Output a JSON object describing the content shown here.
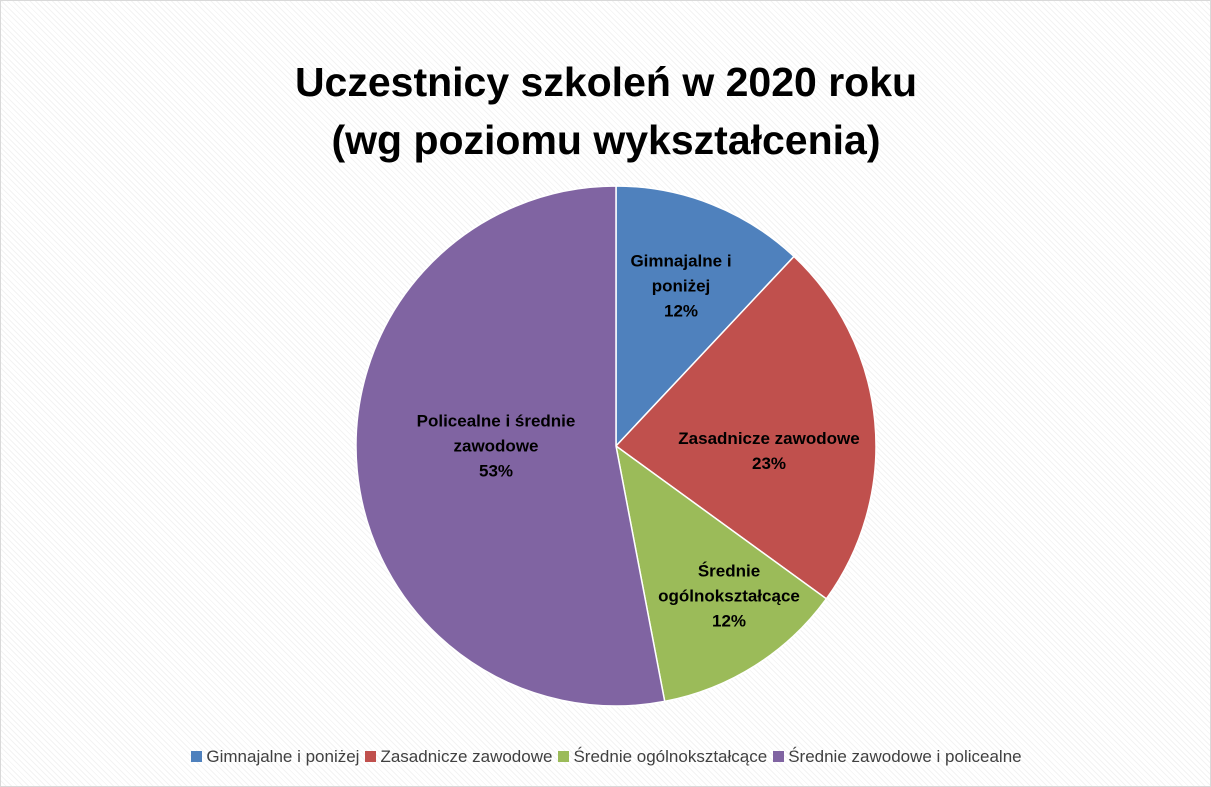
{
  "chart_data": {
    "type": "pie",
    "title": "Uczestnicy szkoleń w 2020 roku (wg poziomu wykształcenia)",
    "categories": [
      "Gimnajalne i poniżej",
      "Zasadnicze zawodowe",
      "Średnie ogólnokształcące",
      "Średnie zawodowe i policealne"
    ],
    "slice_labels": [
      "Gimnajalne i poniżej",
      "Zasadnicze zawodowe",
      "Średnie ogólnokształcące",
      "Policealne i średnie zawodowe"
    ],
    "values": [
      12,
      23,
      12,
      53
    ],
    "value_labels": [
      "12%",
      "23%",
      "12%",
      "53%"
    ],
    "colors": [
      "#4f81bd",
      "#c0504d",
      "#9bbb59",
      "#8064a2"
    ],
    "legend": "bottom"
  }
}
